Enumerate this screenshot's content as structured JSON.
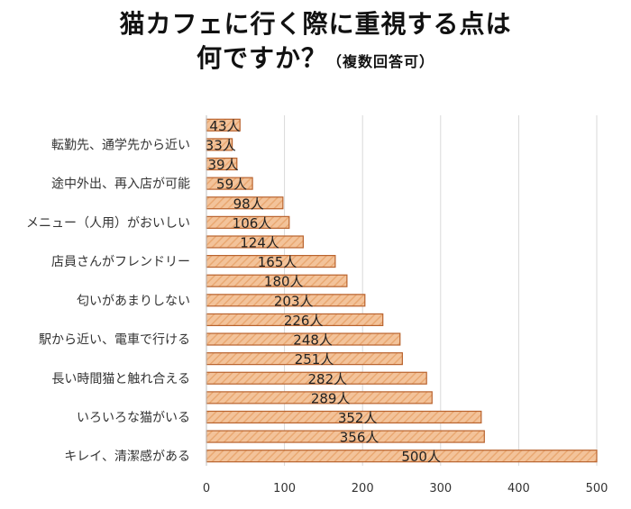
{
  "title_line1": "猫カフェに行く際に重視する点は",
  "title_line2_main": "何ですか？",
  "title_line2_sub": "（複数回答可）",
  "colors": {
    "bar_fill": "#f3c39a",
    "bar_stripe": "#e9a872",
    "bar_edge": "#b9632e",
    "grid": "#d9d9d9"
  },
  "chart_data": {
    "type": "bar",
    "orientation": "horizontal",
    "categories": [
      "",
      "転勤先、通学先から近い",
      "",
      "途中外出、再入店が可能",
      "",
      "メニュー（人用）がおいしい",
      "",
      "店員さんがフレンドリー",
      "",
      "匂いがあまりしない",
      "",
      "駅から近い、電車で行ける",
      "",
      "長い時間猫と触れ合える",
      "",
      "いろいろな猫がいる",
      "",
      "キレイ、清潔感がある"
    ],
    "values": [
      43,
      33,
      39,
      59,
      98,
      106,
      124,
      165,
      180,
      203,
      226,
      248,
      251,
      282,
      289,
      352,
      356,
      500
    ],
    "data_labels": [
      "43人",
      "33人",
      "39人",
      "59人",
      "98人",
      "106人",
      "124人",
      "165人",
      "180人",
      "203人",
      "226人",
      "248人",
      "251人",
      "282人",
      "289人",
      "352人",
      "356人",
      "500人"
    ],
    "xlim": [
      0,
      500
    ],
    "xticks": [
      0,
      100,
      200,
      300,
      400,
      500
    ],
    "grid": true,
    "legend": "none"
  }
}
